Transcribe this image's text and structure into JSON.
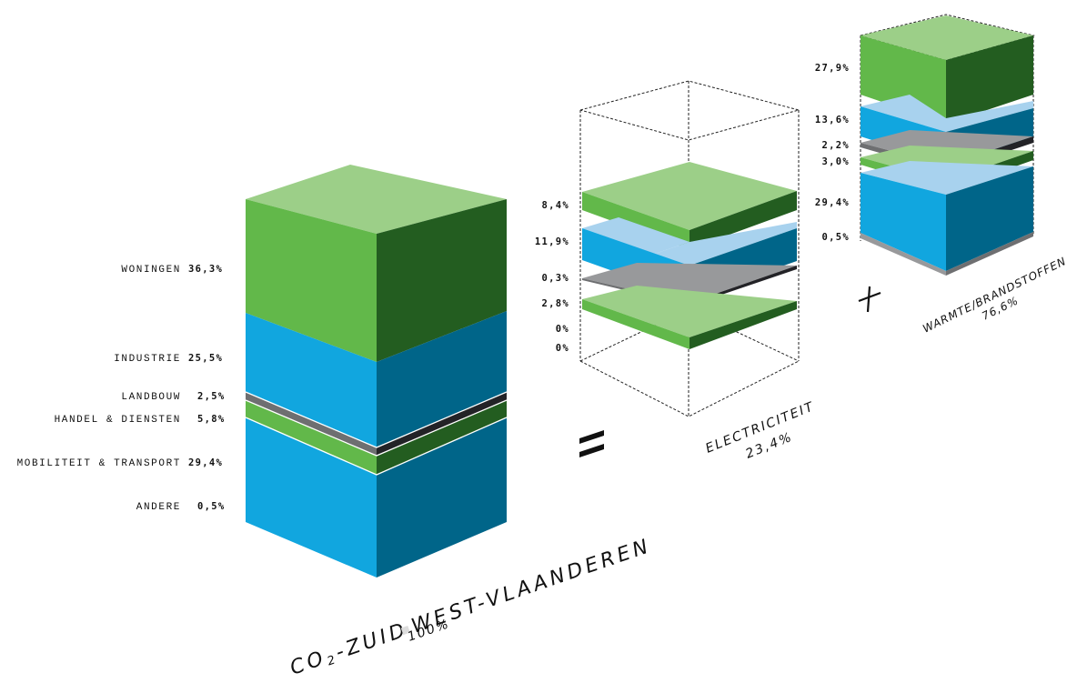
{
  "main_stack": {
    "title_prefix": "CO",
    "title_sub": "2",
    "title_rest": "-ZUID",
    "title_end": "WEST-VLAANDEREN",
    "total": "100%",
    "rows": [
      {
        "label": "WONINGEN",
        "value": "36,3%"
      },
      {
        "label": "INDUSTRIE",
        "value": "25,5%"
      },
      {
        "label": "LANDBOUW",
        "value": "2,5%"
      },
      {
        "label": "HANDEL & DIENSTEN",
        "value": "5,8%"
      },
      {
        "label": "MOBILITEIT & TRANSPORT",
        "value": "29,4%"
      },
      {
        "label": "ANDERE",
        "value": "0,5%"
      }
    ]
  },
  "equals_sign": "=",
  "electricity": {
    "title": "ELECTRICITEIT",
    "total": "23,4%",
    "values": [
      "8,4%",
      "11,9%",
      "0,3%",
      "2,8%",
      "0%",
      "0%"
    ]
  },
  "plus_sign": "+",
  "warmth": {
    "title": "WARMTE/BRANDSTOFFEN",
    "total": "76,6%",
    "values": [
      "27,9%",
      "13,6%",
      "2,2%",
      "3,0%",
      "29,4%",
      "0,5%"
    ]
  },
  "colors": {
    "green_top": "#9ccf88",
    "green_front": "#62b84a",
    "green_side": "#235d20",
    "blue_top": "#a8d2ee",
    "blue_front": "#11a6df",
    "blue_side": "#006589",
    "grey_top": "#98999b",
    "grey_front": "#6e6f71",
    "grey_side": "#232327",
    "separator": "#ffffff"
  }
}
